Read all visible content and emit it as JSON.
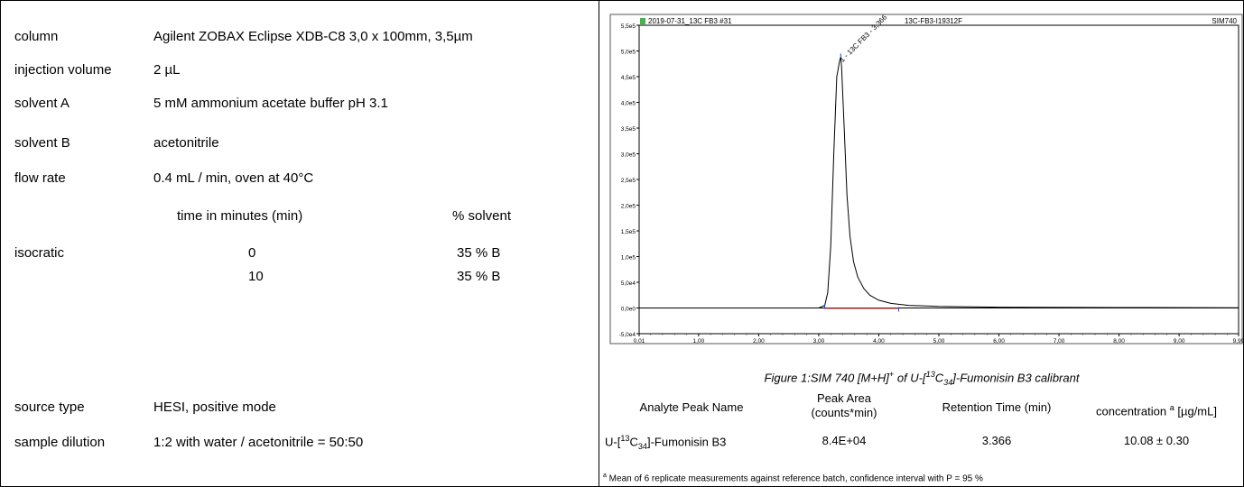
{
  "method": {
    "column": {
      "label": "column",
      "value": "Agilent  ZOBAX Eclipse XDB-C8 3,0 x 100mm, 3,5µm"
    },
    "injection": {
      "label": "injection volume",
      "value": "2 µL"
    },
    "solvent_a": {
      "label": "solvent A",
      "value": "5 mM ammonium acetate buffer pH 3.1"
    },
    "solvent_b": {
      "label": "solvent B",
      "value": "acetonitrile"
    },
    "flow": {
      "label": "flow rate",
      "value": "0.4 mL / min, oven at 40°C"
    },
    "gradient": {
      "col_time": "time in minutes (min)",
      "col_solvent": "% solvent",
      "label": "isocratic",
      "rows": [
        {
          "time": "0",
          "solvent": "35 % B"
        },
        {
          "time": "10",
          "solvent": "35 % B"
        }
      ]
    },
    "source": {
      "label": "source type",
      "value": "HESI, positive mode"
    },
    "dilution": {
      "label": "sample dilution",
      "value": "1:2 with water / acetonitrile = 50:50"
    }
  },
  "chromatogram": {
    "header_left": "2019-07-31_13C FB3 #31",
    "header_center": "13C-FB3-I19312F",
    "header_right": "SIM740",
    "peak_label": "1 - 13C FB3 - 3,366",
    "caption_parts": {
      "p1": "Figure 1:SIM 740 [M+H]",
      "sup1": "+",
      "p2": " of U-[",
      "sup2": "13",
      "p3": "C",
      "sub1": "34",
      "p4": "]-Fumonisin B3 calibrant"
    }
  },
  "chart_data": {
    "type": "line",
    "x_ticks": [
      "0,01",
      "1,00",
      "2,00",
      "3,00",
      "4,00",
      "5,00",
      "6,00",
      "7,00",
      "8,00",
      "9,00",
      "9,99"
    ],
    "y_ticks": [
      "-5,0e4",
      "0,0e0",
      "5,0e4",
      "1,0e5",
      "1,5e5",
      "2,0e5",
      "2,5e5",
      "3,0e5",
      "3,5e5",
      "4,0e5",
      "4,5e5",
      "5,0e5",
      "5,5e5"
    ],
    "xlim": [
      0.01,
      9.99
    ],
    "ylim": [
      -50000,
      550000
    ],
    "x": [
      0.01,
      2.5,
      3.0,
      3.1,
      3.15,
      3.2,
      3.25,
      3.3,
      3.35,
      3.366,
      3.38,
      3.42,
      3.47,
      3.52,
      3.58,
      3.65,
      3.75,
      3.85,
      4.0,
      4.2,
      4.5,
      5.0,
      6.0,
      8.0,
      9.99
    ],
    "y": [
      0,
      0,
      0,
      5000,
      30000,
      120000,
      300000,
      450000,
      482000,
      488000,
      470000,
      360000,
      220000,
      140000,
      90000,
      60000,
      38000,
      25000,
      15000,
      9000,
      5000,
      3000,
      1500,
      800,
      500
    ],
    "baseline": {
      "x": [
        3.1,
        4.33
      ],
      "y": [
        0,
        0
      ]
    },
    "peak": {
      "x": 3.366,
      "y": 488000
    }
  },
  "results": {
    "headers": {
      "name": "Analyte Peak Name",
      "area_l1": "Peak Area",
      "area_l2": "(counts*min)",
      "rt": "Retention Time (min)",
      "conc": "concentration",
      "conc_sup": "a",
      "conc_unit": " [µg/mL]"
    },
    "row": {
      "name_p1": "U-[",
      "name_sup": "13",
      "name_p2": "C",
      "name_sub": "34",
      "name_p3": "]-Fumonisin B3",
      "area": "8.4E+04",
      "rt": "3.366",
      "conc": "10.08 ± 0.30"
    },
    "footnote_sup": "a",
    "footnote": " Mean of 6 replicate measurements against reference batch, confidence interval with P = 95 %"
  }
}
